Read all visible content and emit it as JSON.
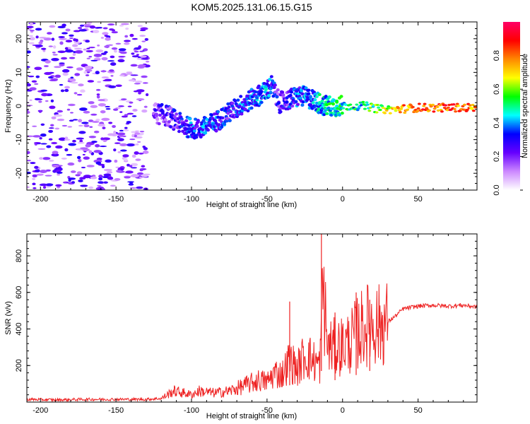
{
  "title": "KOM5.2025.131.06.15.G15",
  "chart_data": [
    {
      "type": "heatmap",
      "title": "KOM5.2025.131.06.15.G15",
      "xlabel": "Height of straight line (km)",
      "ylabel": "Frequency (Hz)",
      "xlim": [
        -209,
        89
      ],
      "ylim": [
        -25,
        25
      ],
      "xticks": [
        -200,
        -150,
        -100,
        -50,
        0,
        50
      ],
      "yticks": [
        -20,
        -10,
        0,
        10,
        20
      ],
      "colorbar": {
        "label": "Normalized spectral amplitude",
        "range": [
          0,
          1
        ],
        "ticks": [
          "0.0",
          "0.2",
          "0.4",
          "0.6",
          "0.8"
        ],
        "colormap": [
          "#ffffff",
          "#cc88ff",
          "#6600ff",
          "#0000ff",
          "#00ffff",
          "#00ff00",
          "#ffff00",
          "#ff8800",
          "#ff0000",
          "#ff0066"
        ]
      },
      "ridge": {
        "x": [
          -125,
          -115,
          -105,
          -95,
          -85,
          -75,
          -68,
          -60,
          -52,
          -47,
          -42,
          -35,
          -28,
          -20,
          -12,
          -5,
          5,
          15,
          25,
          35,
          50,
          70,
          89
        ],
        "freq": [
          -2,
          -3,
          -6,
          -7,
          -5,
          -2,
          0,
          2,
          4,
          6,
          1,
          2,
          3,
          2,
          0,
          0,
          0,
          0,
          -1,
          -1,
          -0.5,
          -0.5,
          -0.5
        ],
        "amplitude": [
          0.3,
          0.35,
          0.4,
          0.45,
          0.45,
          0.4,
          0.45,
          0.45,
          0.5,
          0.45,
          0.35,
          0.4,
          0.45,
          0.5,
          0.55,
          0.6,
          0.6,
          0.6,
          0.7,
          0.85,
          0.95,
          0.95,
          0.9
        ]
      }
    },
    {
      "type": "line",
      "xlabel": "Height of straight line (km)",
      "ylabel": "SNR (v/v)",
      "xlim": [
        -209,
        89
      ],
      "ylim": [
        0,
        920
      ],
      "xticks": [
        -200,
        -150,
        -100,
        -50,
        0,
        50
      ],
      "yticks": [
        200,
        400,
        600,
        800
      ],
      "color": "#ee2222",
      "series": [
        {
          "x": [
            -209,
            -190,
            -170,
            -150,
            -130,
            -120,
            -112,
            -105,
            -100,
            -95,
            -85,
            -75,
            -65,
            -55,
            -50,
            -45,
            -40,
            -35,
            -30,
            -25,
            -20,
            -15,
            -13,
            -10,
            -5,
            0,
            5,
            10,
            15,
            20,
            25,
            30,
            35,
            40,
            50,
            60,
            70,
            80,
            89
          ],
          "y": [
            15,
            12,
            15,
            15,
            15,
            20,
            60,
            50,
            40,
            60,
            50,
            60,
            90,
            120,
            110,
            160,
            150,
            230,
            180,
            260,
            230,
            200,
            650,
            300,
            300,
            310,
            330,
            380,
            420,
            430,
            420,
            440,
            470,
            510,
            525,
            530,
            525,
            530,
            520
          ]
        }
      ],
      "spikes": [
        {
          "x": -35,
          "y": 550
        },
        {
          "x": -14,
          "y": 920
        },
        {
          "x": -5,
          "y": 490
        },
        {
          "x": 9,
          "y": 600
        },
        {
          "x": 18,
          "y": 560
        }
      ]
    }
  ]
}
